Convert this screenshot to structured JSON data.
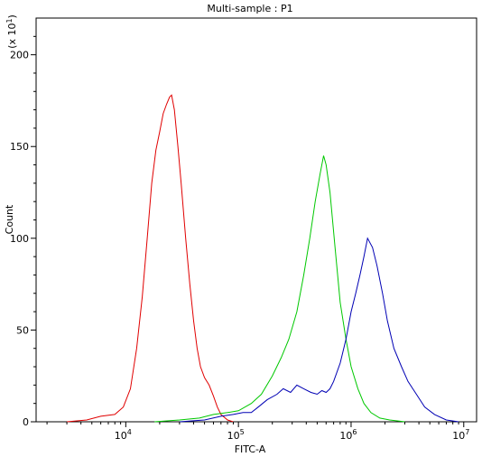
{
  "chart_data": {
    "type": "line",
    "title": "Multi-sample : P1",
    "xlabel": "FITC-A",
    "ylabel": "Count",
    "y_multiplier_label": "(x 10",
    "y_multiplier_exp": "1",
    "y_multiplier_close": ")",
    "x_scale": "log",
    "xlim": [
      1600,
      13000000
    ],
    "ylim": [
      0,
      220
    ],
    "x_ticks": [
      {
        "base": "10",
        "exp": "4",
        "value": 10000
      },
      {
        "base": "10",
        "exp": "5",
        "value": 100000
      },
      {
        "base": "10",
        "exp": "6",
        "value": 1000000
      },
      {
        "base": "10",
        "exp": "7",
        "value": 10000000
      }
    ],
    "y_ticks": [
      {
        "label": "0",
        "value": 0
      },
      {
        "label": "50",
        "value": 50
      },
      {
        "label": "100",
        "value": 100
      },
      {
        "label": "150",
        "value": 150
      },
      {
        "label": "200",
        "value": 200
      }
    ],
    "grid": false,
    "legend": "none",
    "series": [
      {
        "color": "#e00000",
        "x": [
          3000,
          4500,
          6000,
          8000,
          9500,
          11000,
          12500,
          14000,
          15500,
          17000,
          18500,
          20000,
          21500,
          23000,
          24500,
          25500,
          27000,
          29000,
          31000,
          34000,
          37000,
          40000,
          43000,
          46000,
          50000,
          55000,
          60000,
          65000,
          70000,
          80000,
          90000
        ],
        "y": [
          0,
          1,
          3,
          4,
          8,
          18,
          40,
          68,
          100,
          130,
          148,
          158,
          168,
          173,
          177,
          178,
          170,
          150,
          130,
          100,
          75,
          55,
          40,
          30,
          24,
          20,
          14,
          8,
          4,
          1,
          0
        ]
      },
      {
        "color": "#00c800",
        "x": [
          18000,
          30000,
          45000,
          60000,
          80000,
          100000,
          130000,
          160000,
          200000,
          240000,
          280000,
          330000,
          380000,
          430000,
          480000,
          530000,
          570000,
          600000,
          650000,
          720000,
          800000,
          900000,
          1000000,
          1150000,
          1300000,
          1500000,
          1800000,
          2200000,
          3000000
        ],
        "y": [
          0,
          1,
          2,
          4,
          5,
          6,
          10,
          15,
          25,
          35,
          45,
          60,
          80,
          100,
          120,
          135,
          145,
          140,
          125,
          95,
          65,
          45,
          30,
          18,
          10,
          5,
          2,
          1,
          0
        ]
      },
      {
        "color": "#0000b4",
        "x": [
          30000,
          50000,
          70000,
          90000,
          110000,
          130000,
          150000,
          180000,
          220000,
          250000,
          290000,
          330000,
          380000,
          440000,
          500000,
          550000,
          600000,
          650000,
          700000,
          800000,
          900000,
          1000000,
          1100000,
          1200000,
          1300000,
          1400000,
          1550000,
          1700000,
          1900000,
          2100000,
          2400000,
          2800000,
          3200000,
          3800000,
          4500000,
          5500000,
          7000000,
          9000000
        ],
        "y": [
          0,
          1,
          3,
          4,
          5,
          5,
          8,
          12,
          15,
          18,
          16,
          20,
          18,
          16,
          15,
          17,
          16,
          18,
          22,
          32,
          45,
          60,
          70,
          80,
          90,
          100,
          95,
          85,
          70,
          55,
          40,
          30,
          22,
          15,
          8,
          4,
          1,
          0
        ]
      }
    ]
  }
}
